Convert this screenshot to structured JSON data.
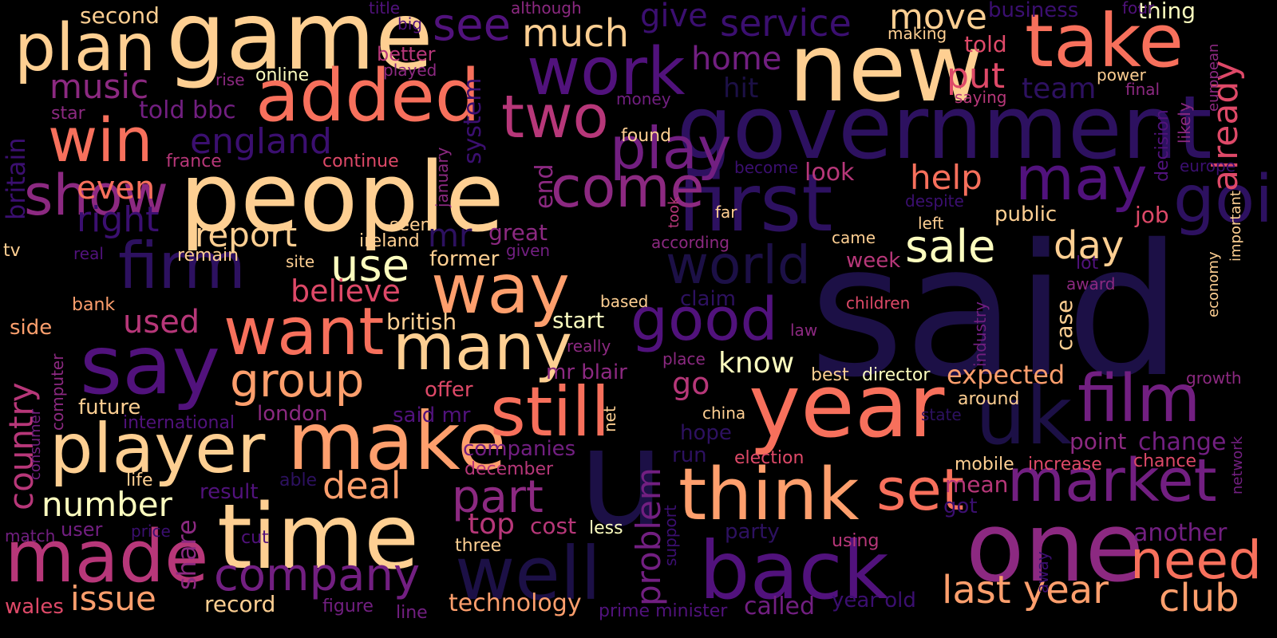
{
  "background": "#000000",
  "palette": {
    "dark_indigo": "#1c1046",
    "indigo": "#2d1160",
    "deep_purple": "#3b0f70",
    "purple": "#51127c",
    "violet": "#721f81",
    "magenta": "#8c2981",
    "raspberry": "#b73779",
    "rose": "#de4968",
    "coral": "#f7705c",
    "salmon": "#fe9f6d",
    "peach": "#fecf92",
    "cream": "#fcfdbf"
  },
  "words": [
    {
      "text": "said",
      "color": "#1c1046"
    },
    {
      "text": "u",
      "color": "#1c1046"
    },
    {
      "text": "government",
      "color": "#2d1160"
    },
    {
      "text": "new",
      "color": "#fecf92"
    },
    {
      "text": "people",
      "color": "#fecf92"
    },
    {
      "text": "game",
      "color": "#fecf92"
    },
    {
      "text": "year",
      "color": "#f7705c"
    },
    {
      "text": "one",
      "color": "#8c2981"
    },
    {
      "text": "first",
      "color": "#2d1160"
    },
    {
      "text": "time",
      "color": "#fecf92"
    },
    {
      "text": "take",
      "color": "#f7705c"
    },
    {
      "text": "make",
      "color": "#fe9f6d"
    },
    {
      "text": "say",
      "color": "#51127c"
    },
    {
      "text": "back",
      "color": "#51127c"
    },
    {
      "text": "well",
      "color": "#1c1046"
    },
    {
      "text": "player",
      "color": "#fecf92"
    },
    {
      "text": "think",
      "color": "#fe9f6d"
    },
    {
      "text": "added",
      "color": "#f7705c"
    },
    {
      "text": "uk",
      "color": "#1c1046"
    },
    {
      "text": "plan",
      "color": "#fecf92"
    },
    {
      "text": "made",
      "color": "#b73779"
    },
    {
      "text": "still",
      "color": "#f7705c"
    },
    {
      "text": "way",
      "color": "#fe9f6d"
    },
    {
      "text": "many",
      "color": "#fecf92"
    },
    {
      "text": "want",
      "color": "#f7705c"
    },
    {
      "text": "work",
      "color": "#51127c"
    },
    {
      "text": "film",
      "color": "#721f81"
    },
    {
      "text": "market",
      "color": "#721f81"
    },
    {
      "text": "may",
      "color": "#51127c"
    },
    {
      "text": "going",
      "color": "#2d1160"
    },
    {
      "text": "firm",
      "color": "#2d1160"
    },
    {
      "text": "good",
      "color": "#51127c"
    },
    {
      "text": "win",
      "color": "#f7705c"
    },
    {
      "text": "two",
      "color": "#b73779"
    },
    {
      "text": "play",
      "color": "#721f81"
    },
    {
      "text": "come",
      "color": "#8c2981"
    },
    {
      "text": "set",
      "color": "#f7705c"
    },
    {
      "text": "need",
      "color": "#f7705c"
    },
    {
      "text": "world",
      "color": "#1c1046"
    },
    {
      "text": "show",
      "color": "#8c2981"
    },
    {
      "text": "company",
      "color": "#721f81"
    },
    {
      "text": "group",
      "color": "#fe9f6d"
    },
    {
      "text": "last year",
      "color": "#fe9f6d"
    },
    {
      "text": "club",
      "color": "#fe9f6d"
    },
    {
      "text": "sale",
      "color": "#fcfdbf"
    },
    {
      "text": "use",
      "color": "#fcfdbf"
    },
    {
      "text": "part",
      "color": "#8c2981"
    },
    {
      "text": "day",
      "color": "#fecf92"
    },
    {
      "text": "see",
      "color": "#51127c"
    },
    {
      "text": "move",
      "color": "#fecf92"
    },
    {
      "text": "much",
      "color": "#fecf92"
    },
    {
      "text": "service",
      "color": "#3b0f70"
    },
    {
      "text": "already",
      "color": "#de4968"
    },
    {
      "text": "england",
      "color": "#3b0f70"
    },
    {
      "text": "music",
      "color": "#8c2981"
    },
    {
      "text": "deal",
      "color": "#fe9f6d"
    },
    {
      "text": "issue",
      "color": "#fe9f6d"
    },
    {
      "text": "number",
      "color": "#fcfdbf"
    },
    {
      "text": "country",
      "color": "#b73779"
    },
    {
      "text": "report",
      "color": "#fecf92"
    },
    {
      "text": "right",
      "color": "#3b0f70"
    },
    {
      "text": "problem",
      "color": "#721f81"
    },
    {
      "text": "help",
      "color": "#f7705c"
    },
    {
      "text": "put",
      "color": "#de4968"
    },
    {
      "text": "home",
      "color": "#721f81"
    },
    {
      "text": "give",
      "color": "#3b0f70"
    },
    {
      "text": "even",
      "color": "#f7705c"
    },
    {
      "text": "used",
      "color": "#b73779"
    },
    {
      "text": "believe",
      "color": "#de4968"
    },
    {
      "text": "mr",
      "color": "#2d1160"
    },
    {
      "text": "top",
      "color": "#b73779"
    },
    {
      "text": "know",
      "color": "#fcfdbf"
    },
    {
      "text": "go",
      "color": "#b73779"
    },
    {
      "text": "expected",
      "color": "#fe9f6d"
    },
    {
      "text": "technology",
      "color": "#fe9f6d"
    },
    {
      "text": "another",
      "color": "#721f81"
    },
    {
      "text": "share",
      "color": "#8c2981"
    },
    {
      "text": "britain",
      "color": "#3b0f70"
    },
    {
      "text": "system",
      "color": "#3b0f70"
    },
    {
      "text": "end",
      "color": "#8c2981"
    },
    {
      "text": "wales",
      "color": "#de4968"
    },
    {
      "text": "record",
      "color": "#fecf92"
    },
    {
      "text": "called",
      "color": "#721f81"
    },
    {
      "text": "business",
      "color": "#3b0f70"
    },
    {
      "text": "thing",
      "color": "#fcfdbf"
    },
    {
      "text": "team",
      "color": "#2d1160"
    },
    {
      "text": "told",
      "color": "#de4968"
    },
    {
      "text": "told bbc",
      "color": "#721f81"
    },
    {
      "text": "second",
      "color": "#fecf92"
    },
    {
      "text": "london",
      "color": "#8c2981"
    },
    {
      "text": "british",
      "color": "#fecf92"
    },
    {
      "text": "start",
      "color": "#fcfdbf"
    },
    {
      "text": "great",
      "color": "#8c2981"
    },
    {
      "text": "former",
      "color": "#fecf92"
    },
    {
      "text": "case",
      "color": "#fecf92"
    },
    {
      "text": "look",
      "color": "#b73779"
    },
    {
      "text": "week",
      "color": "#b73779"
    },
    {
      "text": "public",
      "color": "#fecf92"
    },
    {
      "text": "job",
      "color": "#de4968"
    },
    {
      "text": "change",
      "color": "#721f81"
    },
    {
      "text": "point",
      "color": "#8c2981"
    },
    {
      "text": "mean",
      "color": "#b73779"
    },
    {
      "text": "got",
      "color": "#3b0f70"
    },
    {
      "text": "hit",
      "color": "#1c1046"
    },
    {
      "text": "claim",
      "color": "#2d1160"
    },
    {
      "text": "hope",
      "color": "#2d1160"
    },
    {
      "text": "run",
      "color": "#2d1160"
    },
    {
      "text": "party",
      "color": "#2d1160"
    },
    {
      "text": "cost",
      "color": "#b73779"
    },
    {
      "text": "offer",
      "color": "#de4968"
    },
    {
      "text": "said mr",
      "color": "#51127c"
    },
    {
      "text": "companies",
      "color": "#721f81"
    },
    {
      "text": "mr blair",
      "color": "#8c2981"
    },
    {
      "text": "future",
      "color": "#fecf92"
    },
    {
      "text": "result",
      "color": "#51127c"
    },
    {
      "text": "side",
      "color": "#fe9f6d"
    },
    {
      "text": "user",
      "color": "#721f81"
    },
    {
      "text": "life",
      "color": "#fecf92"
    },
    {
      "text": "director",
      "color": "#fcfdbf"
    },
    {
      "text": "best",
      "color": "#fecf92"
    },
    {
      "text": "around",
      "color": "#fecf92"
    },
    {
      "text": "mobile",
      "color": "#fecf92"
    },
    {
      "text": "increase",
      "color": "#de4968"
    },
    {
      "text": "chance",
      "color": "#de4968"
    },
    {
      "text": "election",
      "color": "#de4968"
    },
    {
      "text": "less",
      "color": "#fcfdbf"
    },
    {
      "text": "three",
      "color": "#fecf92"
    },
    {
      "text": "december",
      "color": "#b73779"
    },
    {
      "text": "using",
      "color": "#b73779"
    },
    {
      "text": "year old",
      "color": "#3b0f70"
    },
    {
      "text": "prime minister",
      "color": "#51127c"
    },
    {
      "text": "figure",
      "color": "#721f81"
    },
    {
      "text": "line",
      "color": "#721f81"
    },
    {
      "text": "support",
      "color": "#3b0f70"
    },
    {
      "text": "away",
      "color": "#3b0f70"
    },
    {
      "text": "cut",
      "color": "#51127c"
    },
    {
      "text": "price",
      "color": "#3b0f70"
    },
    {
      "text": "match",
      "color": "#721f81"
    },
    {
      "text": "able",
      "color": "#2d1160"
    },
    {
      "text": "computer",
      "color": "#8c2981"
    },
    {
      "text": "consumer",
      "color": "#721f81"
    },
    {
      "text": "international",
      "color": "#51127c"
    },
    {
      "text": "bank",
      "color": "#fe9f6d"
    },
    {
      "text": "tv",
      "color": "#fecf92"
    },
    {
      "text": "real",
      "color": "#51127c"
    },
    {
      "text": "remain",
      "color": "#fecf92"
    },
    {
      "text": "site",
      "color": "#fecf92"
    },
    {
      "text": "ireland",
      "color": "#fecf92"
    },
    {
      "text": "seen",
      "color": "#fecf92"
    },
    {
      "text": "france",
      "color": "#b73779"
    },
    {
      "text": "continue",
      "color": "#de4968"
    },
    {
      "text": "star",
      "color": "#8c2981"
    },
    {
      "text": "online",
      "color": "#fcfdbf"
    },
    {
      "text": "rise",
      "color": "#8c2981"
    },
    {
      "text": "better",
      "color": "#b73779"
    },
    {
      "text": "played",
      "color": "#8c2981"
    },
    {
      "text": "title",
      "color": "#51127c"
    },
    {
      "text": "big",
      "color": "#51127c"
    },
    {
      "text": "although",
      "color": "#8c2981"
    },
    {
      "text": "january",
      "color": "#8c2981"
    },
    {
      "text": "given",
      "color": "#721f81"
    },
    {
      "text": "net",
      "color": "#fecf92"
    },
    {
      "text": "china",
      "color": "#fecf92"
    },
    {
      "text": "place",
      "color": "#8c2981"
    },
    {
      "text": "really",
      "color": "#8c2981"
    },
    {
      "text": "based",
      "color": "#fecf92"
    },
    {
      "text": "according",
      "color": "#8c2981"
    },
    {
      "text": "took",
      "color": "#b73779"
    },
    {
      "text": "far",
      "color": "#fecf92"
    },
    {
      "text": "found",
      "color": "#fecf92"
    },
    {
      "text": "money",
      "color": "#721f81"
    },
    {
      "text": "making",
      "color": "#fecf92"
    },
    {
      "text": "become",
      "color": "#3b0f70"
    },
    {
      "text": "despite",
      "color": "#3b0f70"
    },
    {
      "text": "left",
      "color": "#fecf92"
    },
    {
      "text": "came",
      "color": "#fecf92"
    },
    {
      "text": "lot",
      "color": "#51127c"
    },
    {
      "text": "award",
      "color": "#8c2981"
    },
    {
      "text": "children",
      "color": "#de4968"
    },
    {
      "text": "law",
      "color": "#8c2981"
    },
    {
      "text": "industry",
      "color": "#721f81"
    },
    {
      "text": "state",
      "color": "#2d1160"
    },
    {
      "text": "saying",
      "color": "#b73779"
    },
    {
      "text": "power",
      "color": "#fecf92"
    },
    {
      "text": "final",
      "color": "#8c2981"
    },
    {
      "text": "four",
      "color": "#51127c"
    },
    {
      "text": "european",
      "color": "#8c2981"
    },
    {
      "text": "likely",
      "color": "#8c2981"
    },
    {
      "text": "decision",
      "color": "#51127c"
    },
    {
      "text": "europe",
      "color": "#3b0f70"
    },
    {
      "text": "economy",
      "color": "#fecf92"
    },
    {
      "text": "important",
      "color": "#fecf92"
    },
    {
      "text": "growth",
      "color": "#8c2981"
    },
    {
      "text": "network",
      "color": "#721f81"
    }
  ]
}
